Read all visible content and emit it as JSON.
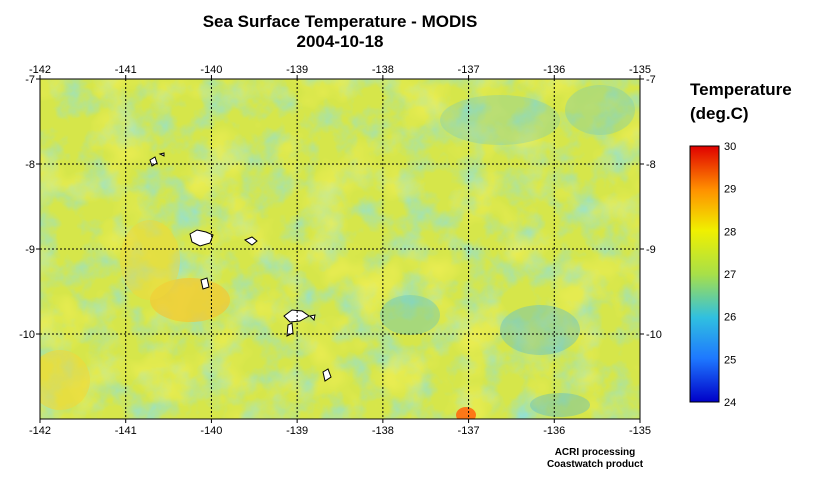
{
  "title": "Sea Surface Temperature - MODIS",
  "date": "2004-10-18",
  "legend": {
    "title_line1": "Temperature",
    "title_line2": "(deg.C)",
    "ticks": [
      "30",
      "29",
      "28",
      "27",
      "26",
      "25",
      "24"
    ],
    "min": 24,
    "max": 30,
    "colors": [
      "#0000c8",
      "#1e90ff",
      "#40c8d0",
      "#b0e040",
      "#f0f000",
      "#ff8000",
      "#e00000"
    ]
  },
  "axes": {
    "lon_ticks": [
      "-142",
      "-141",
      "-140",
      "-139",
      "-138",
      "-137",
      "-136",
      "-135"
    ],
    "lat_ticks": [
      "-7",
      "-8",
      "-9",
      "-10"
    ],
    "lon_range": [
      -142,
      -135
    ],
    "lat_range": [
      -7,
      -11
    ]
  },
  "credits": {
    "line1": "ACRI processing",
    "line2": "Coastwatch product"
  },
  "background_color": "#e4ea3a"
}
